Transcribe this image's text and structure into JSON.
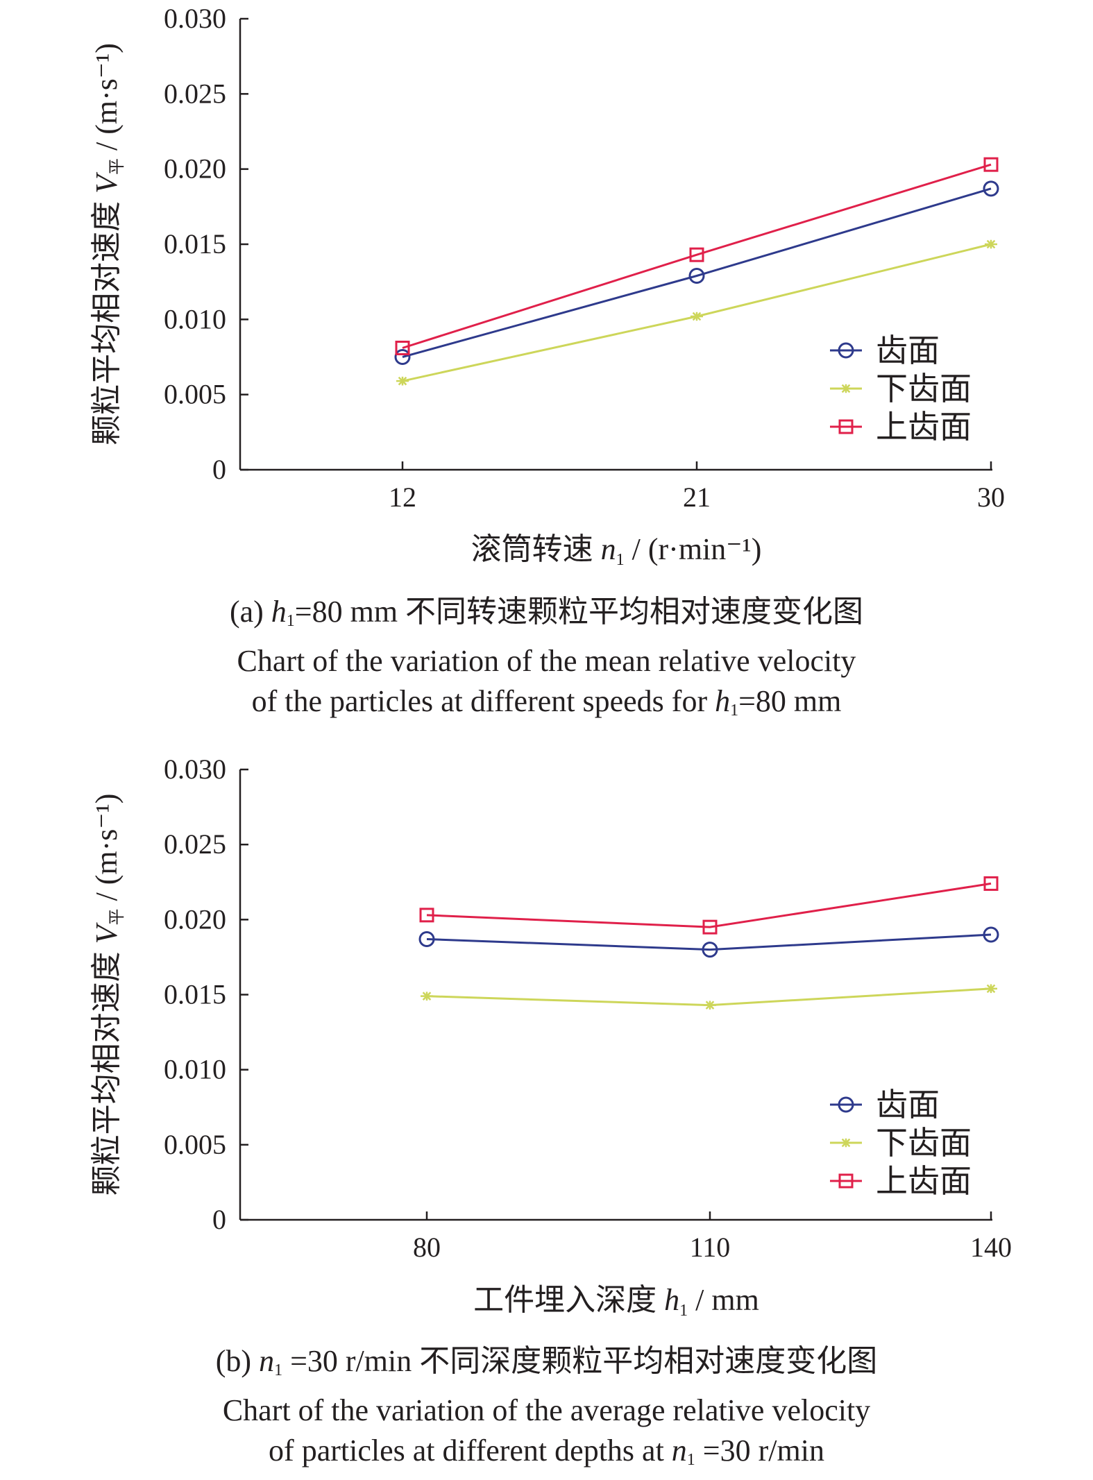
{
  "chart_data": [
    {
      "id": "a",
      "type": "line",
      "x": [
        12,
        21,
        30
      ],
      "xticks": [
        "12",
        "21",
        "30"
      ],
      "xlabel": {
        "text": "滚筒转速 ",
        "var": "n",
        "sub": "1",
        "unit": " / (r·min⁻¹)"
      },
      "ylabel": {
        "text": "颗粒平均相对速度 ",
        "var": "V",
        "sub": "平",
        "unit": " / (m·s⁻¹)"
      },
      "ylim": [
        0,
        0.03
      ],
      "yticks": [
        "0",
        "0.005",
        "0.010",
        "0.015",
        "0.020",
        "0.025",
        "0.030"
      ],
      "legend_position": "bottom-right",
      "series": [
        {
          "name": "齿面",
          "marker": "circle",
          "color": "#2e3a8c",
          "values": [
            0.0075,
            0.0129,
            0.0187
          ]
        },
        {
          "name": "下齿面",
          "marker": "star",
          "color": "#cdd65a",
          "values": [
            0.0059,
            0.0102,
            0.015
          ]
        },
        {
          "name": "上齿面",
          "marker": "square",
          "color": "#e0204a",
          "values": [
            0.0081,
            0.0143,
            0.0203
          ]
        }
      ],
      "caption": {
        "line1_pre": "(a) ",
        "line1_var": "h",
        "line1_sub": "1",
        "line1_post": "=80 mm 不同转速颗粒平均相对速度变化图",
        "line2": "Chart of the variation of the mean relative velocity",
        "line3_pre": "of the particles at different speeds for ",
        "line3_var": "h",
        "line3_sub": "1",
        "line3_post": "=80 mm"
      }
    },
    {
      "id": "b",
      "type": "line",
      "x": [
        80,
        110,
        140
      ],
      "xticks": [
        "80",
        "110",
        "140"
      ],
      "xlabel": {
        "text": "工件埋入深度 ",
        "var": "h",
        "sub": "1",
        "unit": " / mm"
      },
      "ylabel": {
        "text": "颗粒平均相对速度 ",
        "var": "V",
        "sub": "平",
        "unit": " / (m·s⁻¹)"
      },
      "ylim": [
        0,
        0.03
      ],
      "yticks": [
        "0",
        "0.005",
        "0.010",
        "0.015",
        "0.020",
        "0.025",
        "0.030"
      ],
      "legend_position": "bottom-right",
      "series": [
        {
          "name": "齿面",
          "marker": "circle",
          "color": "#2e3a8c",
          "values": [
            0.0187,
            0.018,
            0.019
          ]
        },
        {
          "name": "下齿面",
          "marker": "star",
          "color": "#cdd65a",
          "values": [
            0.0149,
            0.0143,
            0.0154
          ]
        },
        {
          "name": "上齿面",
          "marker": "square",
          "color": "#e0204a",
          "values": [
            0.0203,
            0.0195,
            0.0224
          ]
        }
      ],
      "caption": {
        "line1_pre": "(b) ",
        "line1_var": "n",
        "line1_sub": "1",
        "line1_post": " =30 r/min 不同深度颗粒平均相对速度变化图",
        "line2": "Chart of the variation of the average relative velocity",
        "line3_pre": "of particles at different depths at ",
        "line3_var": "n",
        "line3_sub": "1",
        "line3_post": " =30 r/min"
      }
    }
  ]
}
